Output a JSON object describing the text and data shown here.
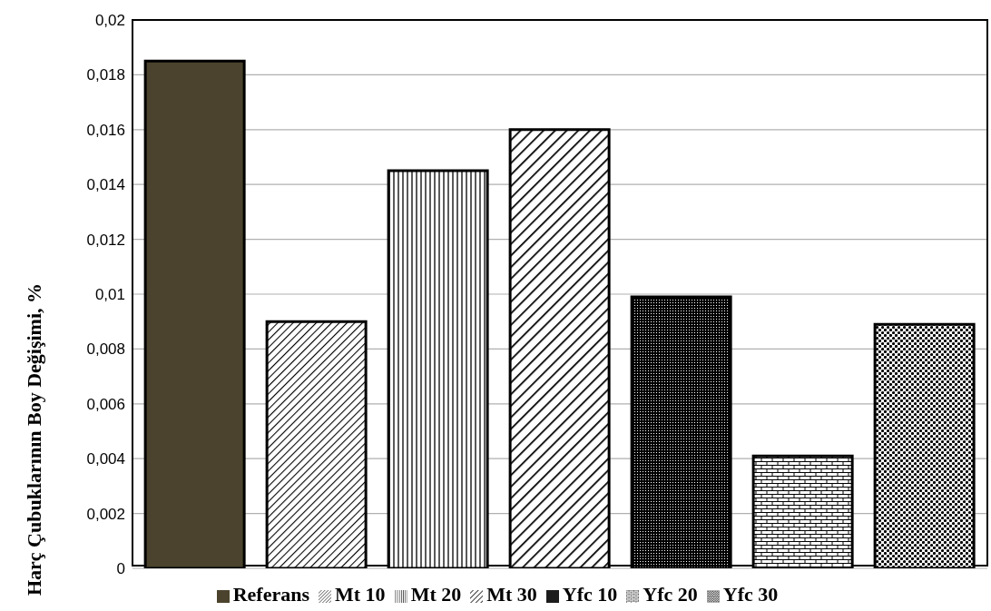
{
  "chart_data": {
    "type": "bar",
    "ylabel": "Harç Çubuklarının Boy Değişimi, %",
    "categories": [
      null
    ],
    "series": [
      {
        "name": "Referans",
        "color": "#4b432d",
        "values": [
          0.0185
        ]
      },
      {
        "name": "Mt 10",
        "color": "#000000",
        "values": [
          0.009
        ]
      },
      {
        "name": "Mt 20",
        "color": "#000000",
        "values": [
          0.0145
        ]
      },
      {
        "name": "Mt 30",
        "color": "#000000",
        "values": [
          0.016
        ]
      },
      {
        "name": "Yfc 10",
        "color": "#000000",
        "values": [
          0.0099
        ]
      },
      {
        "name": "Yfc 20",
        "color": "#000000",
        "values": [
          0.0041
        ]
      },
      {
        "name": "Yfc 30",
        "color": "#000000",
        "values": [
          0.0089
        ]
      }
    ],
    "ylim": [
      0,
      0.02
    ],
    "yticks": [
      0,
      {
        "value": 0.002,
        "label": "0,002"
      },
      {
        "value": 0.004,
        "label": "0,004"
      },
      {
        "value": 0.006,
        "label": "0,006"
      },
      {
        "value": 0.008,
        "label": "0,008"
      },
      {
        "value": 0.01,
        "label": "0,01"
      },
      {
        "value": 0.012,
        "label": "0,012"
      },
      {
        "value": 0.014,
        "label": "0,014"
      },
      {
        "value": 0.016,
        "label": "0,016"
      },
      {
        "value": 0.018,
        "label": "0,018"
      },
      {
        "value": 0.02,
        "label": "0,02"
      }
    ],
    "grid": "y",
    "legend": "bottom"
  }
}
